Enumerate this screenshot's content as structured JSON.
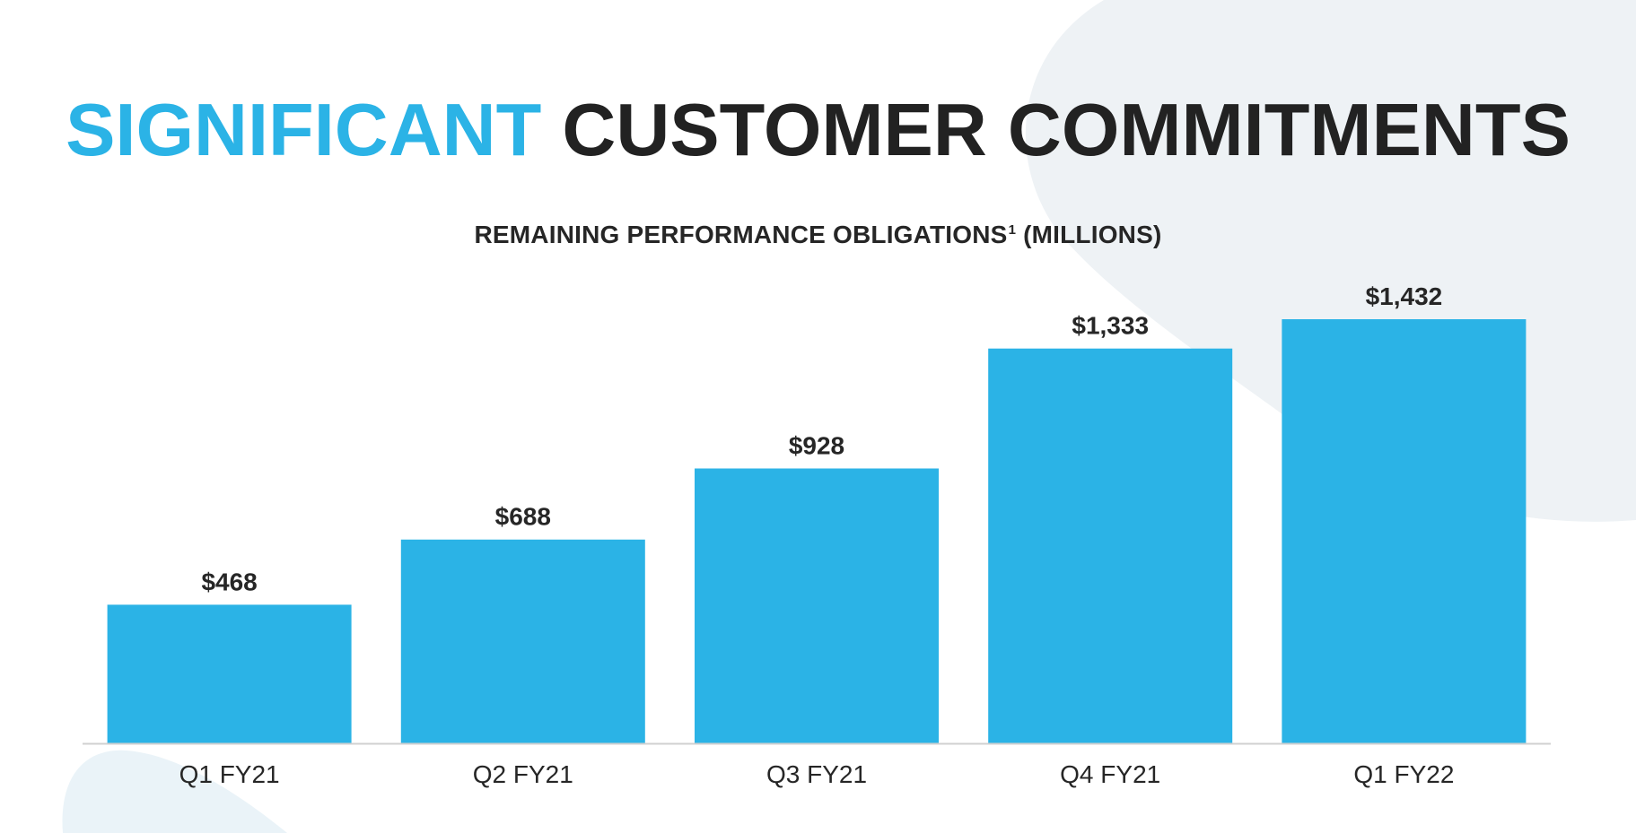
{
  "title": {
    "accent_text": "SIGNIFICANT",
    "main_text": "CUSTOMER COMMITMENTS"
  },
  "colors": {
    "accent": "#2bb3e6",
    "text": "#262626",
    "bar": "#2bb3e6",
    "axis": "#d0d0d0",
    "background_shape": "#eef2f5"
  },
  "chart_data": {
    "type": "bar",
    "title": "REMAINING PERFORMANCE OBLIGATIONS",
    "title_superscript": "1",
    "title_suffix": "(MILLIONS)",
    "categories": [
      "Q1 FY21",
      "Q2 FY21",
      "Q3 FY21",
      "Q4 FY21",
      "Q1 FY22"
    ],
    "values": [
      468,
      688,
      928,
      1333,
      1432
    ],
    "value_labels": [
      "$468",
      "$688",
      "$928",
      "$1,333",
      "$1,432"
    ],
    "ylim": [
      0,
      1432
    ],
    "grid": false,
    "legend": "none"
  }
}
